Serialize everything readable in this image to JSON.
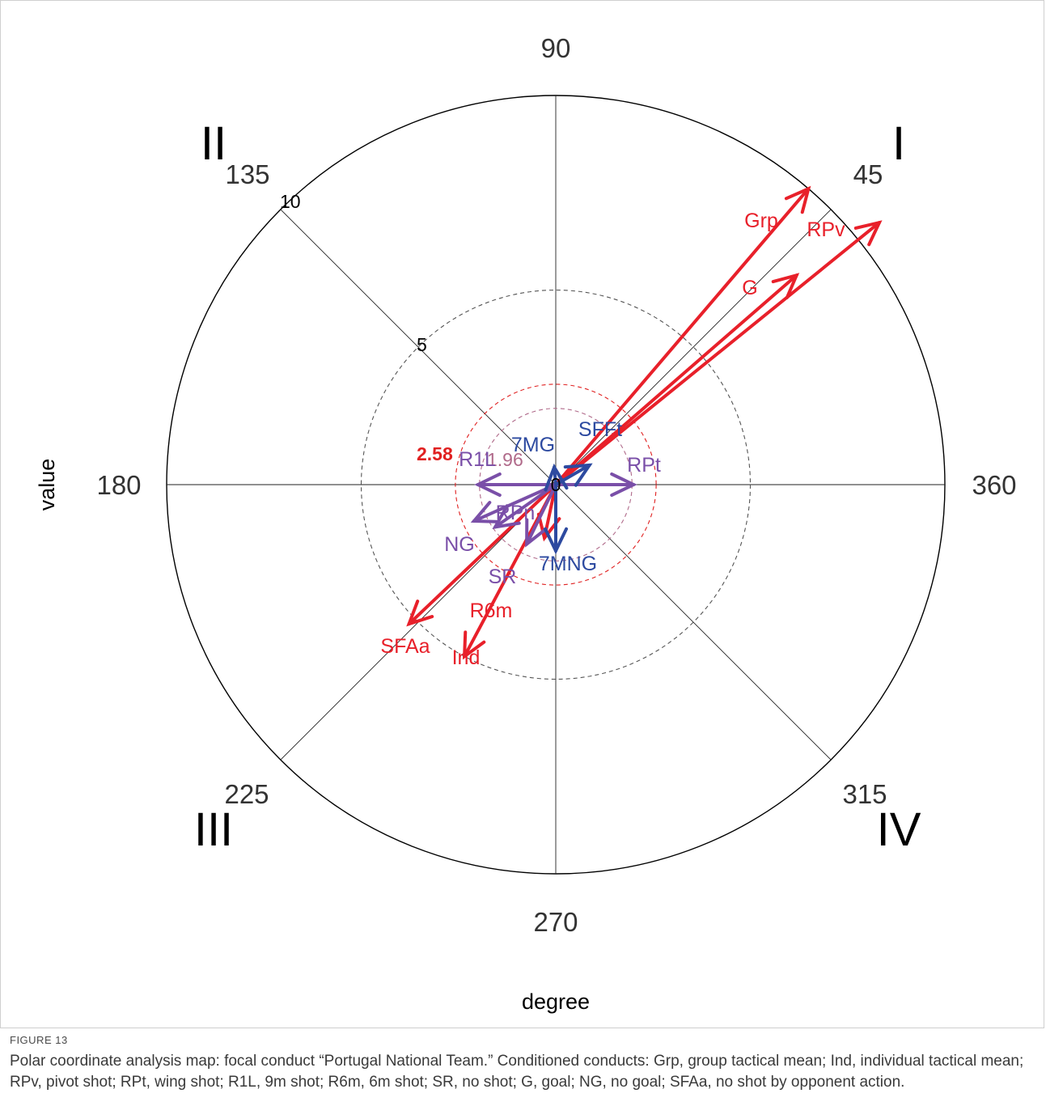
{
  "chart_data": {
    "type": "polar-vector",
    "xlabel": "degree",
    "ylabel": "value",
    "rlim": [
      0,
      10
    ],
    "radial_ticks": [
      "0",
      "5",
      "10"
    ],
    "angle_labels": [
      {
        "angle": 90,
        "text": "90"
      },
      {
        "angle": 45,
        "text": "45"
      },
      {
        "angle": 135,
        "text": "135"
      },
      {
        "angle": 180,
        "text": "180"
      },
      {
        "angle": 0,
        "text": "360"
      },
      {
        "angle": 225,
        "text": "225"
      },
      {
        "angle": 270,
        "text": "270"
      },
      {
        "angle": 315,
        "text": "315"
      }
    ],
    "quadrants": [
      {
        "text": "I",
        "angle": 45
      },
      {
        "text": "II",
        "angle": 135
      },
      {
        "text": "III",
        "angle": 225
      },
      {
        "text": "IV",
        "angle": 315
      }
    ],
    "significance_circles": [
      {
        "r": 1.96,
        "label": "1.96",
        "color": "#b06a8a"
      },
      {
        "r": 2.58,
        "label": "2.58",
        "color": "#e02020"
      },
      {
        "r": 5,
        "label": "",
        "color": "#555555"
      }
    ],
    "vectors": [
      {
        "label": "Grp",
        "angle": 49.5,
        "r": 10.0,
        "color": "#e8202a",
        "width": 4
      },
      {
        "label": "RPv",
        "angle": 39.0,
        "r": 10.7,
        "color": "#e8202a",
        "width": 4
      },
      {
        "label": "G",
        "angle": 41.0,
        "r": 8.2,
        "color": "#e8202a",
        "width": 4
      },
      {
        "label": "SFAa",
        "angle": 223.5,
        "r": 5.2,
        "color": "#e8202a",
        "width": 4
      },
      {
        "label": "Ind",
        "angle": 242.0,
        "r": 5.0,
        "color": "#e8202a",
        "width": 4
      },
      {
        "label": "R6m",
        "angle": 258.0,
        "r": 1.4,
        "color": "#e8202a",
        "width": 4
      },
      {
        "label": "SR",
        "angle": 244.0,
        "r": 1.7,
        "color": "#7a4fa8",
        "width": 4
      },
      {
        "label": "NG",
        "angle": 204.0,
        "r": 2.3,
        "color": "#7a4fa8",
        "width": 4
      },
      {
        "label": "RPn",
        "angle": 215.0,
        "r": 1.9,
        "color": "#7a4fa8",
        "width": 4
      },
      {
        "label": "R1L",
        "angle": 180.0,
        "r": 2.0,
        "color": "#7a4fa8",
        "width": 4
      },
      {
        "label": "RPt",
        "angle": 0.0,
        "r": 2.0,
        "color": "#7a4fa8",
        "width": 4
      },
      {
        "label": "SFFt",
        "angle": 30.0,
        "r": 1.0,
        "color": "#2d4aa0",
        "width": 4
      },
      {
        "label": "7MG",
        "angle": 95.0,
        "r": 0.45,
        "color": "#2d4aa0",
        "width": 4
      },
      {
        "label": "7MNG",
        "angle": 270.0,
        "r": 1.7,
        "color": "#2d4aa0",
        "width": 4
      }
    ]
  },
  "caption": {
    "label": "FIGURE 13",
    "text": "Polar coordinate analysis map: focal conduct “Portugal National Team.” Conditioned conducts: Grp, group tactical mean; Ind, individual tactical mean; RPv, pivot shot; RPt, wing shot; R1L, 9m shot; R6m, 6m shot; SR, no shot; G, goal; NG, no goal; SFAa, no shot by opponent action."
  }
}
